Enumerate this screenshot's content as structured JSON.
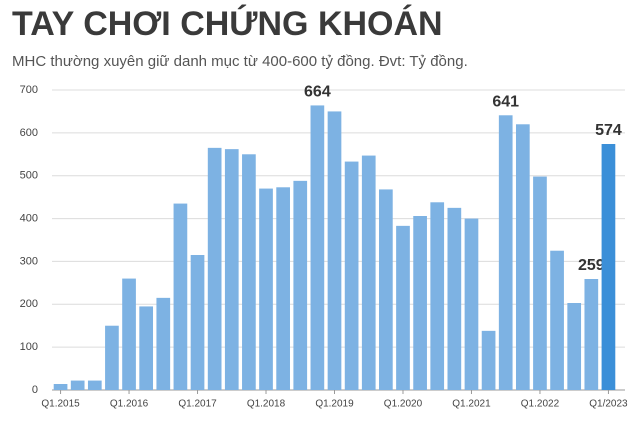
{
  "chart_data": {
    "type": "bar",
    "title": "TAY CHƠI CHỨNG KHOÁN",
    "subtitle": "MHC thường xuyên giữ danh mục từ 400-600 tỷ đồng. Đvt: Tỷ đồng.",
    "categories": [
      "Q1.2015",
      null,
      null,
      null,
      "Q1.2016",
      null,
      null,
      null,
      "Q1.2017",
      null,
      null,
      null,
      "Q1.2018",
      null,
      null,
      null,
      "Q1.2019",
      null,
      null,
      null,
      "Q1.2020",
      null,
      null,
      null,
      "Q1.2021",
      null,
      null,
      null,
      "Q1.2022",
      null,
      null,
      null,
      "Q1/2023"
    ],
    "values": [
      14,
      22,
      22,
      150,
      260,
      195,
      215,
      435,
      315,
      565,
      562,
      550,
      470,
      473,
      488,
      664,
      650,
      533,
      547,
      468,
      383,
      406,
      438,
      425,
      400,
      138,
      641,
      620,
      498,
      325,
      203,
      259,
      574
    ],
    "value_labels": [
      null,
      null,
      null,
      null,
      null,
      null,
      null,
      null,
      null,
      null,
      null,
      null,
      null,
      null,
      null,
      "664",
      null,
      null,
      null,
      null,
      null,
      null,
      null,
      null,
      null,
      null,
      "641",
      null,
      null,
      null,
      null,
      "259",
      "574"
    ],
    "color": "#7db2e3",
    "highlight_color": "#3b8fd8",
    "ylim": [
      0,
      700
    ],
    "yticks": [
      0,
      100,
      200,
      300,
      400,
      500,
      600,
      700
    ],
    "grid": true
  }
}
